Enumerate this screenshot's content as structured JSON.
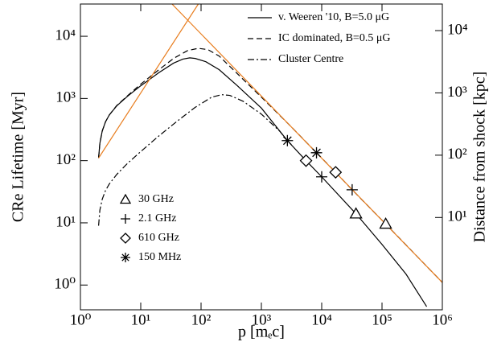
{
  "chart_data": {
    "type": "line",
    "xlabel": "p [mₑc]",
    "ylabel": "CRe Lifetime [Myr]",
    "y2label": "Distance from shock [kpc]",
    "xscale": "log",
    "yscale": "log",
    "xlim": [
      1,
      1000000
    ],
    "ylim": [
      0.4,
      33000
    ],
    "y2lim": [
      0.33,
      26700
    ],
    "xticks": [
      {
        "value": 1,
        "label": "10⁰"
      },
      {
        "value": 10,
        "label": "10¹"
      },
      {
        "value": 100,
        "label": "10²"
      },
      {
        "value": 1000,
        "label": "10³"
      },
      {
        "value": 10000,
        "label": "10⁴"
      },
      {
        "value": 100000,
        "label": "10⁵"
      },
      {
        "value": 1000000,
        "label": "10⁶"
      }
    ],
    "yticks": [
      {
        "value": 1,
        "label": "10⁰"
      },
      {
        "value": 10,
        "label": "10¹"
      },
      {
        "value": 100,
        "label": "10²"
      },
      {
        "value": 1000,
        "label": "10³"
      },
      {
        "value": 10000,
        "label": "10⁴"
      }
    ],
    "y2ticks": [
      {
        "value": 10,
        "label": "10¹"
      },
      {
        "value": 100,
        "label": "10²"
      },
      {
        "value": 1000,
        "label": "10³"
      },
      {
        "value": 10000,
        "label": "10⁴"
      }
    ],
    "legend": "upper right",
    "series": [
      {
        "name": "v. Weeren '10, B=5.0 μG",
        "color": "#000000",
        "dash": "solid",
        "x": [
          2,
          2.1,
          2.3,
          2.6,
          3,
          4,
          6,
          10,
          20,
          35,
          50,
          65,
          80,
          120,
          200,
          400,
          1000,
          2700,
          5500,
          10000,
          37000,
          100000,
          250000,
          550000
        ],
        "values": [
          110,
          190,
          300,
          420,
          540,
          760,
          1080,
          1600,
          2600,
          3700,
          4300,
          4500,
          4400,
          3900,
          2900,
          1600,
          700,
          210,
          100,
          55,
          14,
          4.5,
          1.5,
          0.45
        ]
      },
      {
        "name": "IC dominated, B=0.5 μG",
        "color": "#000000",
        "dash": "dashed",
        "x": [
          2,
          2.1,
          2.3,
          2.6,
          3,
          4,
          6,
          10,
          20,
          35,
          60,
          90,
          130,
          200,
          400,
          1000,
          3000,
          8200,
          17000,
          32000,
          115000,
          1000000
        ],
        "values": [
          110,
          190,
          300,
          420,
          540,
          770,
          1100,
          1700,
          2900,
          4400,
          5900,
          6400,
          6100,
          4800,
          2500,
          1050,
          365,
          134,
          65,
          34,
          9.6,
          1.1
        ]
      },
      {
        "name": "Cluster Centre",
        "color": "#000000",
        "dash": "dashdot",
        "x": [
          2,
          2.1,
          2.3,
          2.6,
          3,
          4,
          6,
          10,
          20,
          40,
          80,
          150,
          220,
          300,
          500,
          1000,
          2000,
          2700
        ],
        "values": [
          9,
          16,
          24,
          33,
          42,
          60,
          90,
          140,
          250,
          430,
          720,
          1050,
          1150,
          1120,
          900,
          560,
          300,
          210
        ]
      },
      {
        "color": "#e87d1e",
        "dash": "solid",
        "x": [
          2,
          90
        ],
        "values": [
          110,
          33000
        ]
      },
      {
        "color": "#e87d1e",
        "dash": "solid",
        "x": [
          33,
          1000000
        ],
        "values": [
          33000,
          1.1
        ]
      }
    ],
    "markers": [
      {
        "name": "30 GHz",
        "symbol": "triangle",
        "x": [
          37000,
          115000
        ],
        "values": [
          14,
          9.6
        ]
      },
      {
        "name": "2.1 GHz",
        "symbol": "plus",
        "x": [
          10000,
          32000
        ],
        "values": [
          55,
          34
        ]
      },
      {
        "name": "610 GHz",
        "symbol": "diamond",
        "x": [
          5500,
          17000
        ],
        "values": [
          100,
          65
        ]
      },
      {
        "name": "150 MHz",
        "symbol": "asterisk",
        "x": [
          2700,
          8200
        ],
        "values": [
          210,
          134
        ]
      }
    ]
  }
}
